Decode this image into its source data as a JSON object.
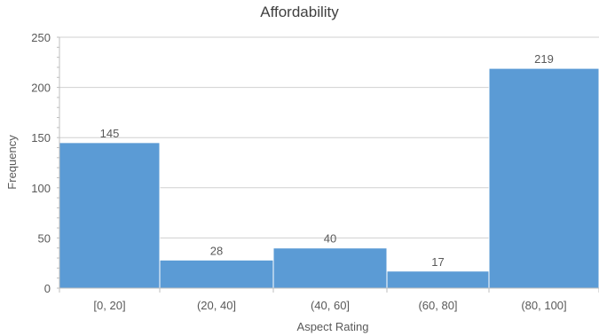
{
  "chart_data": {
    "type": "bar",
    "title": "Affordability",
    "xlabel": "Aspect Rating",
    "ylabel": "Frequency",
    "categories": [
      "[0, 20]",
      "(20, 40]",
      "(40, 60]",
      "(60, 80]",
      "(80, 100]"
    ],
    "values": [
      145,
      28,
      40,
      17,
      219
    ],
    "ylim": [
      0,
      250
    ],
    "yticks": [
      0,
      50,
      100,
      150,
      200,
      250
    ],
    "grid": true,
    "legend": "none",
    "colors": {
      "bar": "#5b9bd5",
      "bar_edge": "#ffffff",
      "grid": "#d0d0d0",
      "axis": "#bfbfbf"
    }
  }
}
